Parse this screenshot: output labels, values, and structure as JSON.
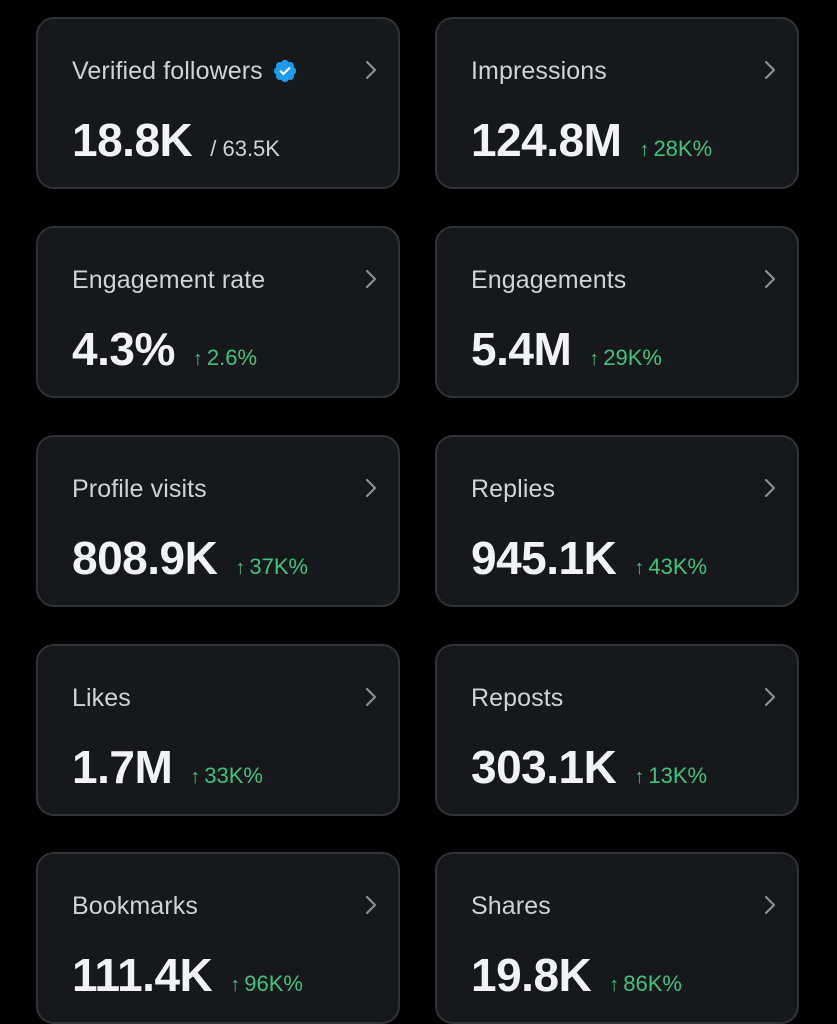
{
  "colors": {
    "background": "#000000",
    "card": "#16181c",
    "card_border": "#2f3336",
    "label": "#d0d3d6",
    "value": "#f2f3f4",
    "positive": "#3cc47a",
    "verified_badge": "#1d9bf0"
  },
  "icons": {
    "verified": "verified-badge-icon",
    "chevron": "chevron-right-icon",
    "arrow": "arrow-up-icon"
  },
  "cards": [
    {
      "label": "Verified followers",
      "value": "18.8K",
      "sub": "/ 63.5K",
      "delta": ""
    },
    {
      "label": "Impressions",
      "value": "124.8M",
      "sub": "",
      "delta": "28K%"
    },
    {
      "label": "Engagement rate",
      "value": "4.3%",
      "sub": "",
      "delta": "2.6%"
    },
    {
      "label": "Engagements",
      "value": "5.4M",
      "sub": "",
      "delta": "29K%"
    },
    {
      "label": "Profile visits",
      "value": "808.9K",
      "sub": "",
      "delta": "37K%"
    },
    {
      "label": "Replies",
      "value": "945.1K",
      "sub": "",
      "delta": "43K%"
    },
    {
      "label": "Likes",
      "value": "1.7M",
      "sub": "",
      "delta": "33K%"
    },
    {
      "label": "Reposts",
      "value": "303.1K",
      "sub": "",
      "delta": "13K%"
    },
    {
      "label": "Bookmarks",
      "value": "111.4K",
      "sub": "",
      "delta": "96K%"
    },
    {
      "label": "Shares",
      "value": "19.8K",
      "sub": "",
      "delta": "86K%"
    }
  ]
}
